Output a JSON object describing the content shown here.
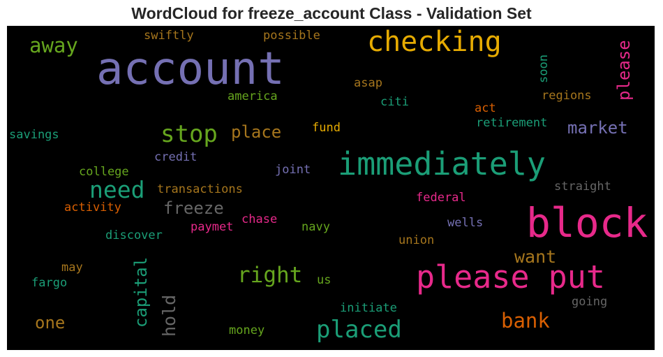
{
  "title": "WordCloud for freeze_account Class - Validation Set",
  "words": [
    {
      "text": "account",
      "color": "#7570b3"
    },
    {
      "text": "checking",
      "color": "#e6ab02"
    },
    {
      "text": "block",
      "color": "#e7298a"
    },
    {
      "text": "immediately",
      "color": "#1b9e77"
    },
    {
      "text": "please put",
      "color": "#e7298a"
    },
    {
      "text": "placed",
      "color": "#1b9e77"
    },
    {
      "text": "stop",
      "color": "#66a61e"
    },
    {
      "text": "need",
      "color": "#1b9e77"
    },
    {
      "text": "away",
      "color": "#66a61e"
    },
    {
      "text": "please",
      "color": "#e7298a"
    },
    {
      "text": "right",
      "color": "#66a61e"
    },
    {
      "text": "bank",
      "color": "#d95f02"
    },
    {
      "text": "capital",
      "color": "#1b9e77"
    },
    {
      "text": "hold",
      "color": "#666666"
    },
    {
      "text": "want",
      "color": "#a6761d"
    },
    {
      "text": "market",
      "color": "#7570b3"
    },
    {
      "text": "place",
      "color": "#a6761d"
    },
    {
      "text": "freeze",
      "color": "#666666"
    },
    {
      "text": "one",
      "color": "#a6761d"
    },
    {
      "text": "swiftly",
      "color": "#a6761d"
    },
    {
      "text": "possible",
      "color": "#a6761d"
    },
    {
      "text": "soon",
      "color": "#1b9e77"
    },
    {
      "text": "asap",
      "color": "#a6761d"
    },
    {
      "text": "regions",
      "color": "#a6761d"
    },
    {
      "text": "america",
      "color": "#66a61e"
    },
    {
      "text": "citi",
      "color": "#1b9e77"
    },
    {
      "text": "act",
      "color": "#d95f02"
    },
    {
      "text": "retirement",
      "color": "#1b9e77"
    },
    {
      "text": "savings",
      "color": "#1b9e77"
    },
    {
      "text": "fund",
      "color": "#e6ab02"
    },
    {
      "text": "credit",
      "color": "#7570b3"
    },
    {
      "text": "college",
      "color": "#66a61e"
    },
    {
      "text": "joint",
      "color": "#7570b3"
    },
    {
      "text": "transactions",
      "color": "#a6761d"
    },
    {
      "text": "straight",
      "color": "#666666"
    },
    {
      "text": "activity",
      "color": "#d95f02"
    },
    {
      "text": "federal",
      "color": "#e7298a"
    },
    {
      "text": "chase",
      "color": "#e7298a"
    },
    {
      "text": "wells",
      "color": "#7570b3"
    },
    {
      "text": "discover",
      "color": "#1b9e77"
    },
    {
      "text": "paymet",
      "color": "#e7298a"
    },
    {
      "text": "navy",
      "color": "#66a61e"
    },
    {
      "text": "union",
      "color": "#a6761d"
    },
    {
      "text": "may",
      "color": "#a6761d"
    },
    {
      "text": "fargo",
      "color": "#1b9e77"
    },
    {
      "text": "us",
      "color": "#66a61e"
    },
    {
      "text": "initiate",
      "color": "#1b9e77"
    },
    {
      "text": "going",
      "color": "#666666"
    },
    {
      "text": "money",
      "color": "#66a61e"
    }
  ]
}
